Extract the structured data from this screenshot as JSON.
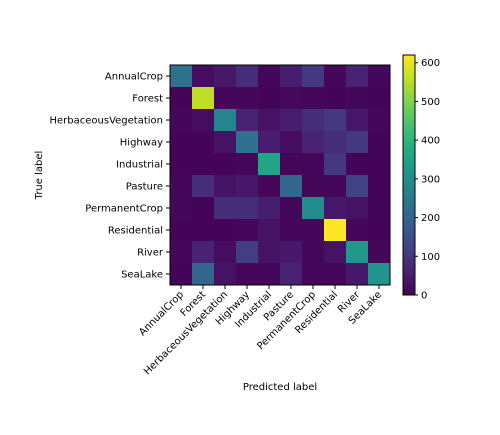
{
  "chart_data": {
    "type": "heatmap",
    "xlabel": "Predicted label",
    "ylabel": "True label",
    "x_categories": [
      "AnnualCrop",
      "Forest",
      "HerbaceousVegetation",
      "Highway",
      "Industrial",
      "Pasture",
      "PermanentCrop",
      "Residential",
      "River",
      "SeaLake"
    ],
    "y_categories": [
      "AnnualCrop",
      "Forest",
      "HerbaceousVegetation",
      "Highway",
      "Industrial",
      "Pasture",
      "PermanentCrop",
      "Residential",
      "River",
      "SeaLake"
    ],
    "values": [
      [
        230,
        20,
        40,
        80,
        10,
        50,
        100,
        10,
        60,
        10
      ],
      [
        5,
        560,
        10,
        10,
        5,
        15,
        10,
        5,
        10,
        5
      ],
      [
        10,
        20,
        280,
        60,
        30,
        50,
        80,
        100,
        40,
        10
      ],
      [
        5,
        5,
        30,
        230,
        50,
        20,
        60,
        80,
        100,
        5
      ],
      [
        5,
        5,
        5,
        10,
        360,
        10,
        10,
        100,
        5,
        5
      ],
      [
        10,
        80,
        30,
        40,
        10,
        200,
        10,
        10,
        120,
        5
      ],
      [
        10,
        5,
        80,
        80,
        50,
        10,
        300,
        40,
        30,
        5
      ],
      [
        5,
        5,
        5,
        10,
        30,
        10,
        10,
        620,
        10,
        5
      ],
      [
        10,
        60,
        20,
        110,
        30,
        40,
        10,
        30,
        330,
        10
      ],
      [
        5,
        200,
        30,
        10,
        10,
        60,
        10,
        10,
        40,
        320
      ]
    ],
    "zlim": [
      0,
      620
    ],
    "colorbar_ticks": [
      0,
      100,
      200,
      300,
      400,
      500,
      600
    ],
    "colormap": "viridis",
    "grid": false
  }
}
